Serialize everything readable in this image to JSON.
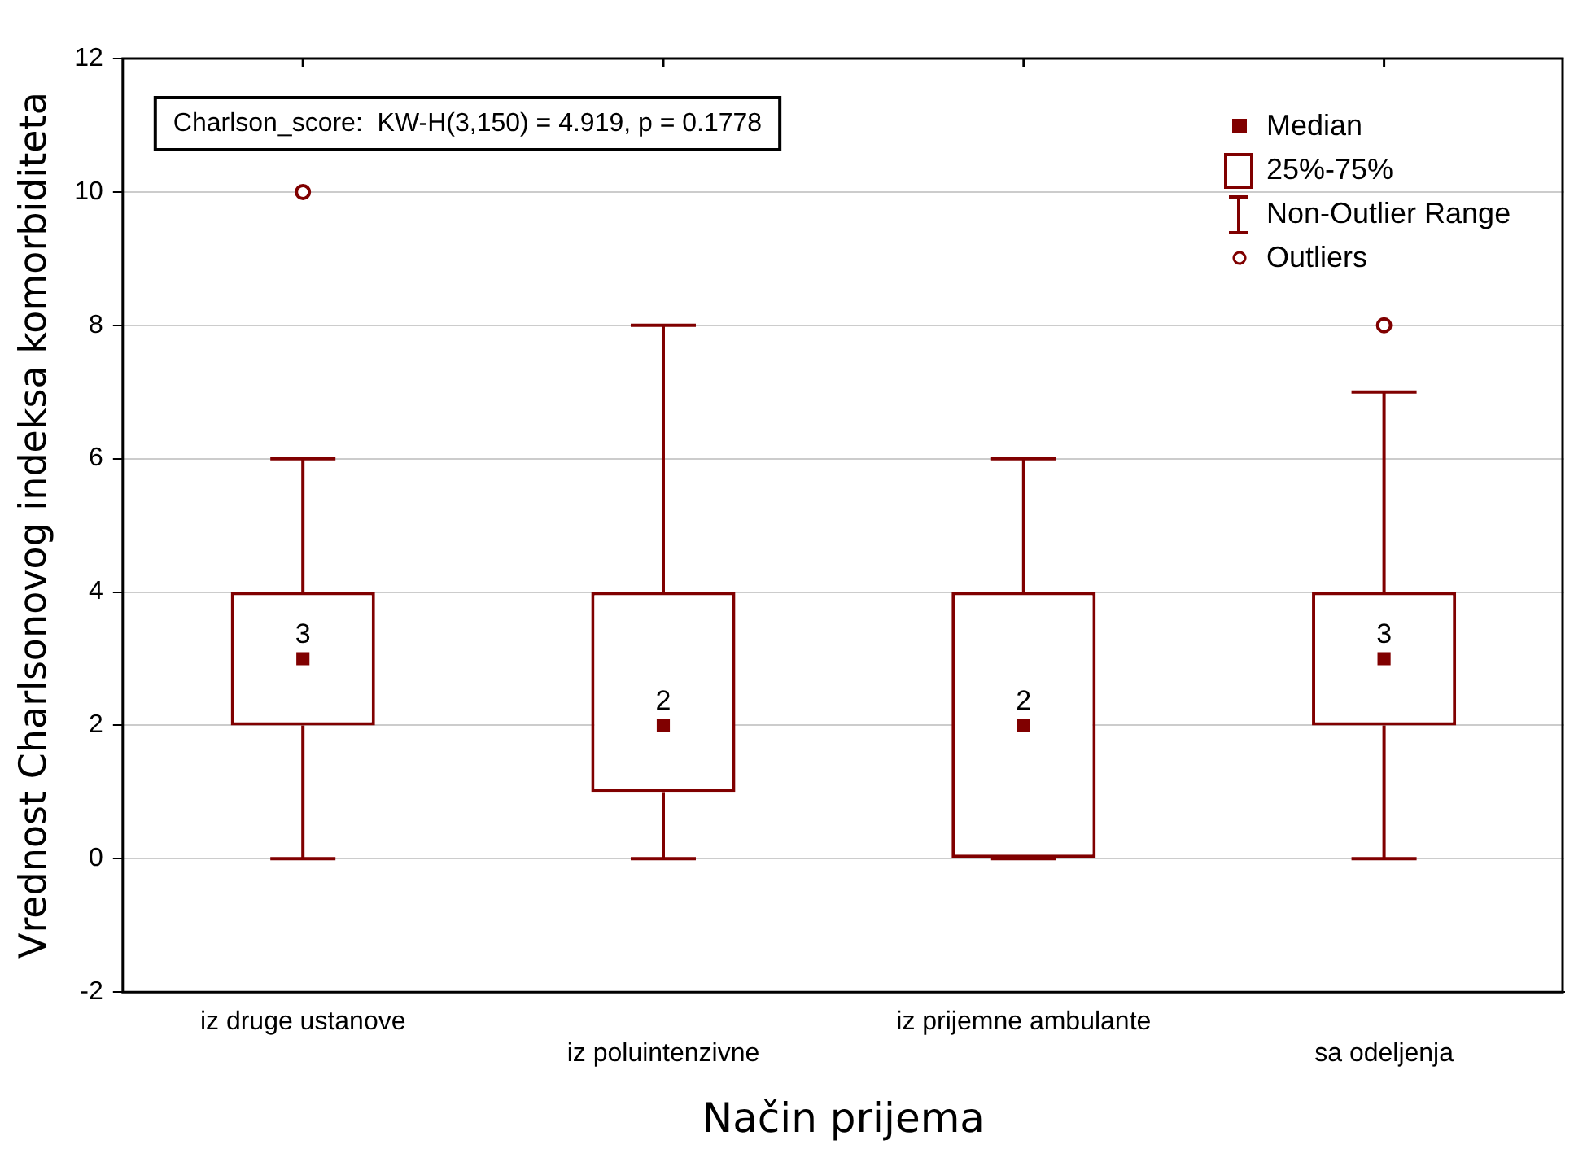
{
  "chart_data": {
    "type": "box",
    "xlabel": "Način prijema",
    "ylabel": "Vrednost Charlsonovog indeksa komorbiditeta",
    "categories": [
      "iz druge ustanove",
      "iz poluintenzivne",
      "iz prijemne ambulante",
      "sa odeljenja"
    ],
    "boxes": [
      {
        "low": 0,
        "q1": 2,
        "median": 3,
        "q3": 4,
        "high": 6,
        "outliers": [
          10
        ]
      },
      {
        "low": 0,
        "q1": 1,
        "median": 2,
        "q3": 4,
        "high": 8
      },
      {
        "low": 0,
        "q1": 0,
        "median": 2,
        "q3": 4,
        "high": 6
      },
      {
        "low": 0,
        "q1": 2,
        "median": 3,
        "q3": 4,
        "high": 7,
        "outliers": [
          8
        ]
      }
    ],
    "color": "#800000",
    "marker": "square",
    "grid": "y",
    "ylim": [
      -2,
      12
    ],
    "yticks": [
      -2,
      0,
      2,
      4,
      6,
      8,
      10,
      12
    ],
    "annotations": [
      "Charlson_score:  KW-H(3,150) = 4.919, p = 0.1778",
      "Median",
      "25%-75%",
      "Non-Outlier Range",
      "Outliers",
      {
        "text": "3",
        "x": "iz druge ustanove",
        "y": 3
      },
      {
        "text": "2",
        "x": "iz poluintenzivne",
        "y": 2
      },
      {
        "text": "2",
        "x": "iz prijemne ambulante",
        "y": 2
      },
      {
        "text": "3",
        "x": "sa odeljenja",
        "y": 3
      }
    ]
  }
}
